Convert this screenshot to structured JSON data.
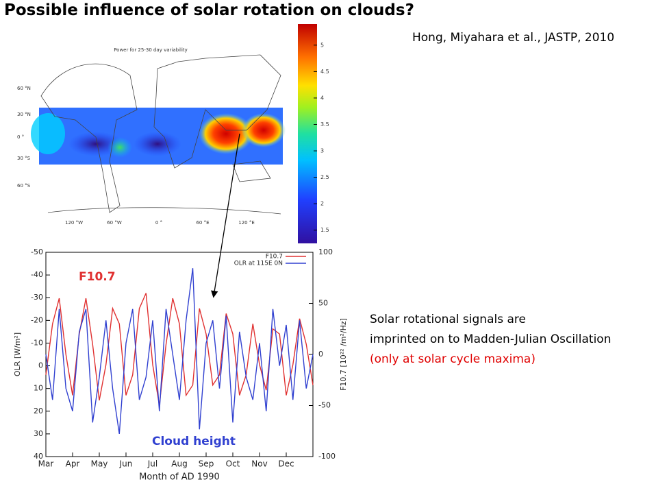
{
  "title": "Possible influence of solar rotation on clouds?",
  "citation": "Hong, Miyahara et al., JASTP, 2010",
  "notes": [
    "Solar rotational signals are",
    "imprinted on to Madden-Julian Oscillation",
    "(only at solar cycle maxima)"
  ],
  "map": {
    "title": "Power for 25-30 day variability",
    "lat_labels": [
      "60 °N",
      "30 °N",
      "0 °",
      "30 °S",
      "60 °S"
    ],
    "lon_labels": [
      "120 °W",
      "60 °W",
      "0 °",
      "60 °E",
      "120 °E"
    ],
    "colorbar": {
      "lim": [
        1.25,
        5.4
      ],
      "ticks": [
        1.5,
        2,
        2.5,
        3,
        3.5,
        4,
        4.5,
        5
      ]
    }
  },
  "chart_data": {
    "type": "line",
    "annotations": [
      "F10.7",
      "Cloud height"
    ],
    "x_label": "Month of AD 1990",
    "y_label": "OLR [W/m²]",
    "y2_label": "F10.7 [10²² /m²/Hz]",
    "x": [
      0,
      0.25,
      0.5,
      0.75,
      1,
      1.25,
      1.5,
      1.75,
      2,
      2.25,
      2.5,
      2.75,
      3,
      3.25,
      3.5,
      3.75,
      4,
      4.25,
      4.5,
      4.75,
      5,
      5.25,
      5.5,
      5.75,
      6,
      6.25,
      6.5,
      6.75,
      7,
      7.25,
      7.5,
      7.75,
      8,
      8.25,
      8.5,
      8.75,
      9,
      9.25,
      9.5,
      9.75,
      10
    ],
    "xlim": [
      0,
      10
    ],
    "xticks": [
      {
        "value": 0,
        "label": "Mar"
      },
      {
        "value": 1,
        "label": "Apr"
      },
      {
        "value": 2,
        "label": "May"
      },
      {
        "value": 3,
        "label": "Jun"
      },
      {
        "value": 4,
        "label": "Jul"
      },
      {
        "value": 5,
        "label": "Aug"
      },
      {
        "value": 6,
        "label": "Sep"
      },
      {
        "value": 7,
        "label": "Oct"
      },
      {
        "value": 8,
        "label": "Nov"
      },
      {
        "value": 9,
        "label": "Dec"
      }
    ],
    "ylim": [
      -50,
      40
    ],
    "y_inverted": true,
    "yticks": [
      -50,
      -40,
      -30,
      -20,
      -10,
      0,
      10,
      20,
      30,
      40
    ],
    "y2lim": [
      -100,
      100
    ],
    "y2ticks": [
      100,
      50,
      0,
      -50,
      -100
    ],
    "legend": "top-right",
    "series": [
      {
        "name": "F10.7",
        "color": "#e03030",
        "axis": "y2",
        "values": [
          -20,
          30,
          55,
          0,
          -40,
          20,
          55,
          10,
          -45,
          -10,
          45,
          30,
          -40,
          -20,
          45,
          60,
          -10,
          -50,
          10,
          55,
          30,
          -40,
          -30,
          45,
          20,
          -30,
          -20,
          40,
          20,
          -40,
          -20,
          30,
          -10,
          -35,
          25,
          20,
          -40,
          -10,
          35,
          10,
          -30
        ]
      },
      {
        "name": "OLR at 115E 0N",
        "color": "#3040d0",
        "values": [
          -5,
          15,
          -25,
          10,
          20,
          -15,
          -25,
          25,
          5,
          -20,
          10,
          30,
          -10,
          -25,
          15,
          5,
          -20,
          20,
          -25,
          -5,
          15,
          -20,
          -43,
          28,
          -10,
          -20,
          10,
          -22,
          25,
          -15,
          5,
          15,
          -10,
          20,
          -25,
          0,
          -18,
          15,
          -20,
          10,
          -5
        ]
      }
    ]
  }
}
